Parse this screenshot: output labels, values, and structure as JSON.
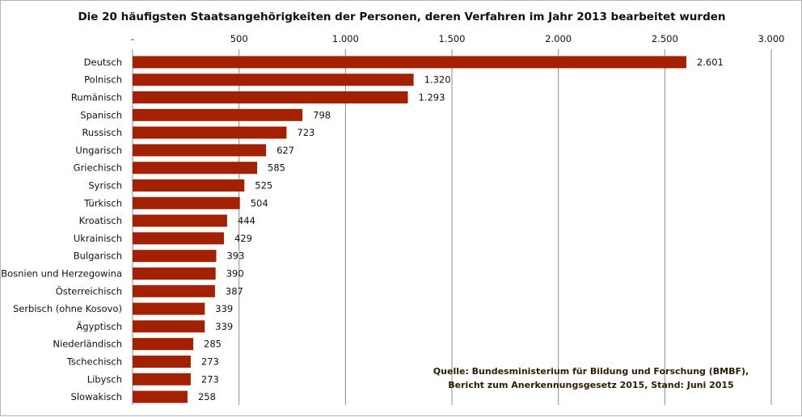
{
  "chart_data": {
    "type": "bar",
    "orientation": "horizontal",
    "title": "Die 20 häufigsten Staatsangehörigkeiten der Personen, deren Verfahren im Jahr 2013 bearbeitet wurden",
    "categories": [
      "Deutsch",
      "Polnisch",
      "Rumänisch",
      "Spanisch",
      "Russisch",
      "Ungarisch",
      "Griechisch",
      "Syrisch",
      "Türkisch",
      "Kroatisch",
      "Ukrainisch",
      "Bulgarisch",
      "Bosnien und Herzegowina",
      "Österreichisch",
      "Serbisch (ohne Kosovo)",
      "Ägyptisch",
      "Niederländisch",
      "Tschechisch",
      "Libysch",
      "Slowakisch"
    ],
    "values": [
      2601,
      1320,
      1293,
      798,
      723,
      627,
      585,
      525,
      504,
      444,
      429,
      393,
      390,
      387,
      339,
      339,
      285,
      273,
      273,
      258
    ],
    "value_labels": [
      "2.601",
      "1.320",
      "1.293",
      "798",
      "723",
      "627",
      "585",
      "525",
      "504",
      "444",
      "429",
      "393",
      "390",
      "387",
      "339",
      "339",
      "285",
      "273",
      "273",
      "258"
    ],
    "xlim": [
      0,
      3000
    ],
    "xticks": [
      0,
      500,
      1000,
      1500,
      2000,
      2500,
      3000
    ],
    "xtick_labels": [
      "-",
      "500",
      "1.000",
      "1.500",
      "2.000",
      "2.500",
      "3.000"
    ],
    "axis_position": "top",
    "grid": true,
    "bar_color": "#a32100",
    "grid_color": "#8c8c8c",
    "source_lines": [
      "Quelle: Bundesministerium  für Bildung und Forschung (BMBF),",
      "Bericht zum Anerkennungsgesetz  2015, Stand: Juni 2015"
    ]
  }
}
